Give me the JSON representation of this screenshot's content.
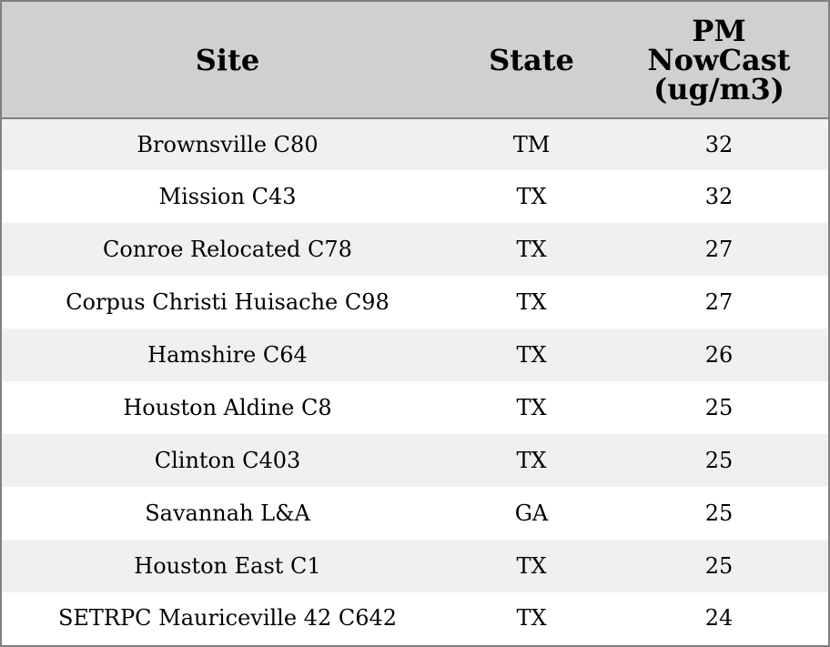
{
  "table": {
    "headers": {
      "site": "Site",
      "state": "State",
      "pm": [
        "PM",
        "NowCast",
        "(ug/m3)"
      ]
    },
    "rows": [
      {
        "site": "Brownsville C80",
        "state": "TM",
        "pm": "32"
      },
      {
        "site": "Mission C43",
        "state": "TX",
        "pm": "32"
      },
      {
        "site": "Conroe Relocated C78",
        "state": "TX",
        "pm": "27"
      },
      {
        "site": "Corpus Christi Huisache C98",
        "state": "TX",
        "pm": "27"
      },
      {
        "site": "Hamshire C64",
        "state": "TX",
        "pm": "26"
      },
      {
        "site": "Houston Aldine C8",
        "state": "TX",
        "pm": "25"
      },
      {
        "site": "Clinton C403",
        "state": "TX",
        "pm": "25"
      },
      {
        "site": "Savannah L&A",
        "state": "GA",
        "pm": "25"
      },
      {
        "site": "Houston East C1",
        "state": "TX",
        "pm": "25"
      },
      {
        "site": "SETRPC Mauriceville 42 C642",
        "state": "TX",
        "pm": "24"
      }
    ]
  }
}
